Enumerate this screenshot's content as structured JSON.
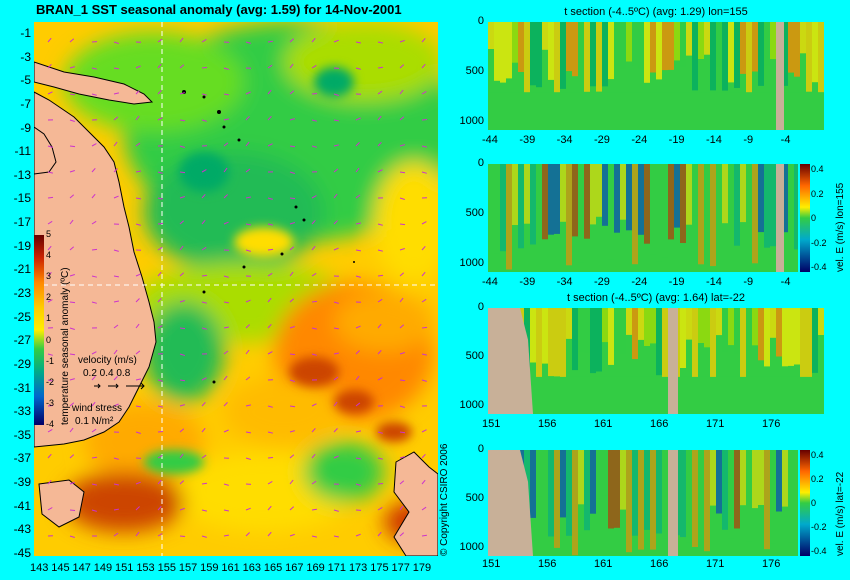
{
  "main_map": {
    "title": "BRAN_1 SST seasonal anomaly (avg: 1.59) for 14-Nov-2001",
    "lat_ticks": [
      "-1",
      "-3",
      "-5",
      "-7",
      "-9",
      "-11",
      "-13",
      "-15",
      "-17",
      "-19",
      "-21",
      "-23",
      "-25",
      "-27",
      "-29",
      "-31",
      "-33",
      "-35",
      "-37",
      "-39",
      "-41",
      "-43",
      "-45"
    ],
    "lon_ticks": [
      "143",
      "145",
      "147",
      "149",
      "151",
      "153",
      "155",
      "157",
      "159",
      "161",
      "163",
      "165",
      "167",
      "169",
      "171",
      "173",
      "175",
      "177",
      "179"
    ],
    "colorbar": {
      "ticks": [
        "5",
        "4",
        "3",
        "2",
        "1",
        "0",
        "-1",
        "-2",
        "-3",
        "-4"
      ],
      "label": "temperature seasonal anomaly (ºC)"
    },
    "velocity_legend": {
      "title": "velocity (m/s)",
      "values": "0.2 0.4 0.8"
    },
    "wind_legend": {
      "title": "wind stress",
      "value": "0.1 N/m²"
    },
    "copyright": "© Copyright CSIRO 2006"
  },
  "panels": [
    {
      "id": "t-section-lon155",
      "title": "t section (-4..5ºC) (avg: 1.29) lon=155",
      "y_ticks": [
        "0",
        "500",
        "1000"
      ],
      "x_ticks": [
        "-44",
        "-39",
        "-34",
        "-29",
        "-24",
        "-19",
        "-14",
        "-9",
        "-4"
      ]
    },
    {
      "id": "vel-section-lon155",
      "title": "",
      "y_ticks": [
        "0",
        "500",
        "1000"
      ],
      "x_ticks": [
        "-44",
        "-39",
        "-34",
        "-29",
        "-24",
        "-19",
        "-14",
        "-9",
        "-4"
      ],
      "colorbar": {
        "ticks": [
          "0.4",
          "0.2",
          "0",
          "-0.2",
          "-0.4"
        ],
        "label": "vel. E (m/s) lon=155"
      }
    },
    {
      "id": "t-section-lat-22",
      "title": "t section (-4..5ºC) (avg: 1.64) lat=-22",
      "y_ticks": [
        "0",
        "500",
        "1000"
      ],
      "x_ticks": [
        "151",
        "156",
        "161",
        "166",
        "171",
        "176"
      ]
    },
    {
      "id": "vel-section-lat-22",
      "title": "",
      "y_ticks": [
        "0",
        "500",
        "1000"
      ],
      "x_ticks": [
        "151",
        "156",
        "161",
        "166",
        "171",
        "176"
      ],
      "colorbar": {
        "ticks": [
          "0.4",
          "0.2",
          "0",
          "-0.2",
          "-0.4"
        ],
        "label": "vel. E (m/s) lat=-22"
      }
    }
  ],
  "colors": {
    "background": "#00ffff",
    "land": "#f5b896",
    "section_land": "#c8b098",
    "warm": "#ff8800",
    "neutral": "#ffdd00",
    "cool": "#22cc44",
    "cold": "#0033cc"
  }
}
